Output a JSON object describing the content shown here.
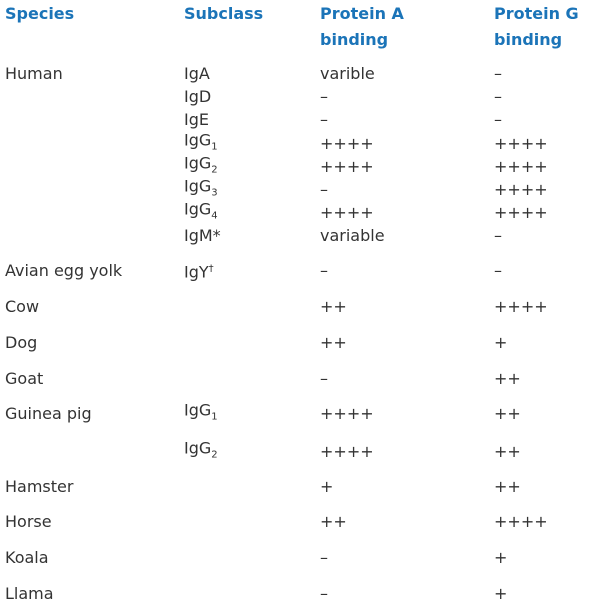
{
  "header": {
    "species": "Species",
    "subclass": "Subclass",
    "protein_a": [
      "Protein A",
      "binding"
    ],
    "protein_g": [
      "Protein G",
      "binding"
    ]
  },
  "table": {
    "groups": [
      {
        "species": "Human",
        "entries": [
          {
            "subclass": {
              "text": "IgA"
            },
            "protein_a": "varible",
            "protein_g": "–"
          },
          {
            "subclass": {
              "text": "IgD"
            },
            "protein_a": "–",
            "protein_g": "–"
          },
          {
            "subclass": {
              "text": "IgE"
            },
            "protein_a": "–",
            "protein_g": "–"
          },
          {
            "subclass": {
              "text": "IgG",
              "sub": "1"
            },
            "protein_a": "++++",
            "protein_g": "++++"
          },
          {
            "subclass": {
              "text": "IgG",
              "sub": "2"
            },
            "protein_a": "++++",
            "protein_g": "++++"
          },
          {
            "subclass": {
              "text": "IgG",
              "sub": "3"
            },
            "protein_a": "–",
            "protein_g": "++++"
          },
          {
            "subclass": {
              "text": "IgG",
              "sub": "4"
            },
            "protein_a": "++++",
            "protein_g": "++++"
          },
          {
            "subclass": {
              "text": "IgM*"
            },
            "protein_a": "variable",
            "protein_g": "–"
          }
        ]
      },
      {
        "species": "Avian egg yolk",
        "entries": [
          {
            "subclass": {
              "text": "IgY",
              "sup": "†"
            },
            "protein_a": "–",
            "protein_g": "–"
          }
        ]
      },
      {
        "species": "Cow",
        "entries": [
          {
            "protein_a": "++",
            "protein_g": "++++"
          }
        ]
      },
      {
        "species": "Dog",
        "entries": [
          {
            "protein_a": "++",
            "protein_g": "+"
          }
        ]
      },
      {
        "species": "Goat",
        "entries": [
          {
            "protein_a": "–",
            "protein_g": "++"
          }
        ]
      },
      {
        "species": "Guinea pig",
        "entries": [
          {
            "subclass": {
              "text": "IgG",
              "sub": "1"
            },
            "protein_a": "++++",
            "protein_g": "++"
          },
          {
            "subclass": {
              "text": "IgG",
              "sub": "2"
            },
            "protein_a": "++++",
            "protein_g": "++"
          }
        ]
      },
      {
        "species": "Hamster",
        "entries": [
          {
            "protein_a": "+",
            "protein_g": "++"
          }
        ]
      },
      {
        "species": "Horse",
        "entries": [
          {
            "protein_a": "++",
            "protein_g": "++++"
          }
        ]
      },
      {
        "species": "Koala",
        "entries": [
          {
            "protein_a": "–",
            "protein_g": "+"
          }
        ]
      },
      {
        "species": "Llama",
        "entries": [
          {
            "protein_a": "–",
            "protein_g": "+"
          }
        ]
      }
    ]
  }
}
